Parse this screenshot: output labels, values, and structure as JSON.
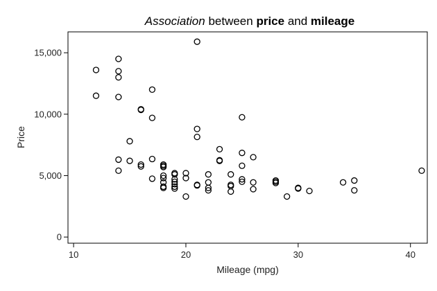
{
  "chart_data": {
    "type": "scatter",
    "title": {
      "parts": [
        {
          "text": "Association",
          "style": "italic"
        },
        {
          "text": " between ",
          "style": "normal"
        },
        {
          "text": "price",
          "style": "bold"
        },
        {
          "text": " and ",
          "style": "normal"
        },
        {
          "text": "mileage",
          "style": "bold"
        }
      ]
    },
    "xlabel": "Mileage (mpg)",
    "ylabel": "Price",
    "xlim": [
      9.5,
      41.5
    ],
    "ylim": [
      -500,
      16700
    ],
    "xticks": [
      10,
      20,
      30,
      40
    ],
    "xtick_labels": [
      "10",
      "20",
      "30",
      "40"
    ],
    "yticks": [
      0,
      5000,
      10000,
      15000
    ],
    "ytick_labels": [
      "0",
      "5,000",
      "10,000",
      "15,000"
    ],
    "grid": false,
    "legend": "none",
    "points": [
      {
        "x": 12,
        "y": 13600
      },
      {
        "x": 12,
        "y": 11500
      },
      {
        "x": 14,
        "y": 14500
      },
      {
        "x": 14,
        "y": 13500
      },
      {
        "x": 14,
        "y": 13000
      },
      {
        "x": 14,
        "y": 11400
      },
      {
        "x": 14,
        "y": 6300
      },
      {
        "x": 14,
        "y": 5400
      },
      {
        "x": 15,
        "y": 7800
      },
      {
        "x": 15,
        "y": 6200
      },
      {
        "x": 16,
        "y": 10400
      },
      {
        "x": 16,
        "y": 10350
      },
      {
        "x": 16,
        "y": 5900
      },
      {
        "x": 16,
        "y": 5750
      },
      {
        "x": 17,
        "y": 12000
      },
      {
        "x": 17,
        "y": 9700
      },
      {
        "x": 17,
        "y": 6350
      },
      {
        "x": 17,
        "y": 4750
      },
      {
        "x": 18,
        "y": 5900
      },
      {
        "x": 18,
        "y": 5800
      },
      {
        "x": 18,
        "y": 5700
      },
      {
        "x": 18,
        "y": 5000
      },
      {
        "x": 18,
        "y": 4800
      },
      {
        "x": 18,
        "y": 4450
      },
      {
        "x": 18,
        "y": 4100
      },
      {
        "x": 18,
        "y": 4000
      },
      {
        "x": 19,
        "y": 5200
      },
      {
        "x": 19,
        "y": 5100
      },
      {
        "x": 19,
        "y": 4700
      },
      {
        "x": 19,
        "y": 4500
      },
      {
        "x": 19,
        "y": 4300
      },
      {
        "x": 19,
        "y": 4100
      },
      {
        "x": 19,
        "y": 3950
      },
      {
        "x": 20,
        "y": 5200
      },
      {
        "x": 20,
        "y": 4800
      },
      {
        "x": 20,
        "y": 3300
      },
      {
        "x": 21,
        "y": 15900
      },
      {
        "x": 21,
        "y": 8800
      },
      {
        "x": 21,
        "y": 8150
      },
      {
        "x": 21,
        "y": 4250
      },
      {
        "x": 21,
        "y": 4200
      },
      {
        "x": 22,
        "y": 5100
      },
      {
        "x": 22,
        "y": 4450
      },
      {
        "x": 22,
        "y": 4000
      },
      {
        "x": 22,
        "y": 3800
      },
      {
        "x": 23,
        "y": 7150
      },
      {
        "x": 23,
        "y": 6250
      },
      {
        "x": 23,
        "y": 6200
      },
      {
        "x": 24,
        "y": 5100
      },
      {
        "x": 24,
        "y": 4250
      },
      {
        "x": 24,
        "y": 4150
      },
      {
        "x": 24,
        "y": 3700
      },
      {
        "x": 25,
        "y": 9750
      },
      {
        "x": 25,
        "y": 6850
      },
      {
        "x": 25,
        "y": 5800
      },
      {
        "x": 25,
        "y": 4700
      },
      {
        "x": 25,
        "y": 4500
      },
      {
        "x": 26,
        "y": 6500
      },
      {
        "x": 26,
        "y": 4450
      },
      {
        "x": 26,
        "y": 3900
      },
      {
        "x": 28,
        "y": 4600
      },
      {
        "x": 28,
        "y": 4500
      },
      {
        "x": 28,
        "y": 4400
      },
      {
        "x": 29,
        "y": 3300
      },
      {
        "x": 30,
        "y": 4000
      },
      {
        "x": 30,
        "y": 3950
      },
      {
        "x": 31,
        "y": 3750
      },
      {
        "x": 34,
        "y": 4450
      },
      {
        "x": 35,
        "y": 4600
      },
      {
        "x": 35,
        "y": 3800
      },
      {
        "x": 41,
        "y": 5400
      }
    ]
  }
}
